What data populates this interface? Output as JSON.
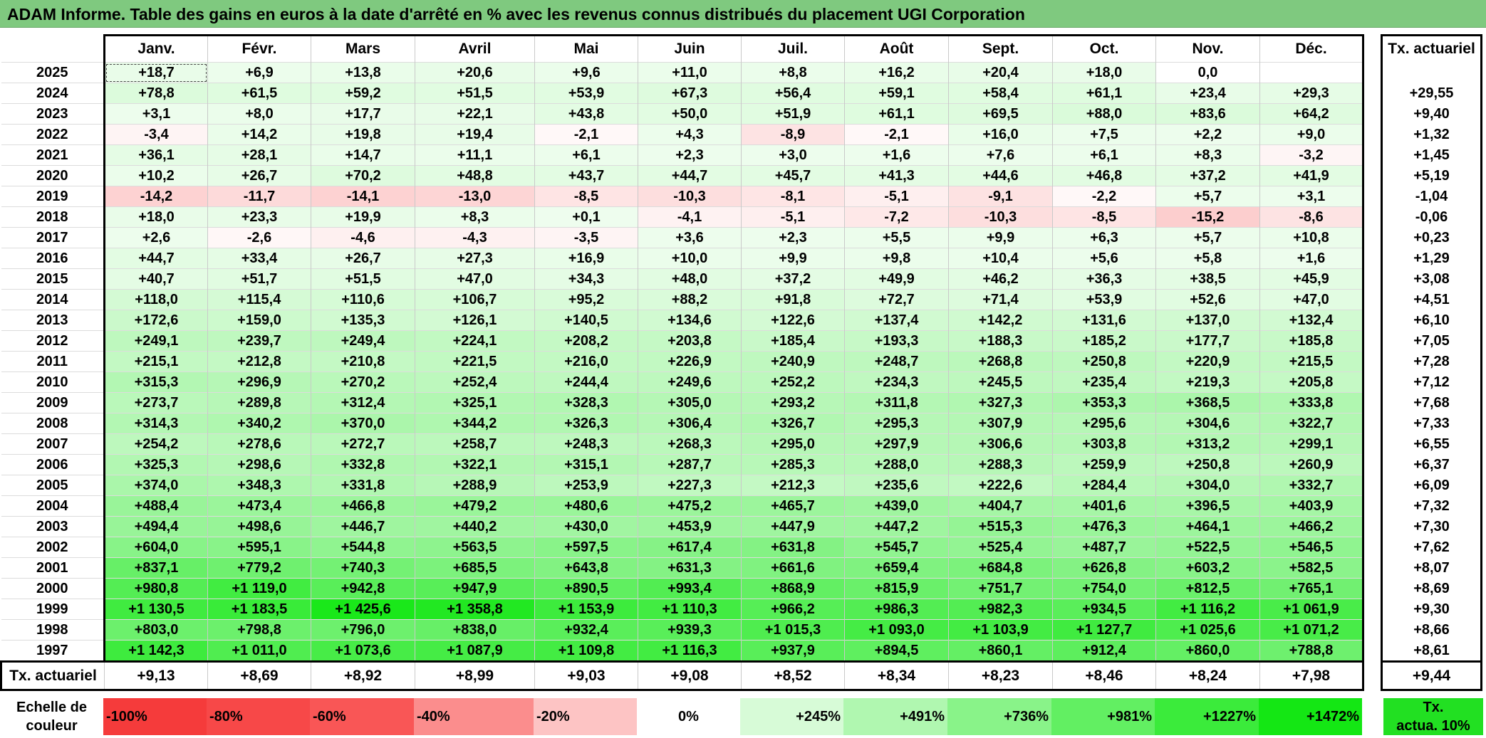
{
  "title": "ADAM Informe. Table des gains en euros à la date d'arrêté en % avec les revenus connus distribués du placement UGI Corporation",
  "months": [
    "Janv.",
    "Févr.",
    "Mars",
    "Avril",
    "Mai",
    "Juin",
    "Juil.",
    "Août",
    "Sept.",
    "Oct.",
    "Nov.",
    "Déc."
  ],
  "actuarial_header": "Tx. actuariel",
  "rows": [
    {
      "year": "2025",
      "values": [
        "+18,7",
        "+6,9",
        "+13,8",
        "+20,6",
        "+9,6",
        "+11,0",
        "+8,8",
        "+16,2",
        "+20,4",
        "+18,0",
        "0,0",
        ""
      ],
      "actuarial": ""
    },
    {
      "year": "2024",
      "values": [
        "+78,8",
        "+61,5",
        "+59,2",
        "+51,5",
        "+53,9",
        "+67,3",
        "+56,4",
        "+59,1",
        "+58,4",
        "+61,1",
        "+23,4",
        "+29,3"
      ],
      "actuarial": "+29,55"
    },
    {
      "year": "2023",
      "values": [
        "+3,1",
        "+8,0",
        "+17,7",
        "+22,1",
        "+43,8",
        "+50,0",
        "+51,9",
        "+61,1",
        "+69,5",
        "+88,0",
        "+83,6",
        "+64,2"
      ],
      "actuarial": "+9,40"
    },
    {
      "year": "2022",
      "values": [
        "-3,4",
        "+14,2",
        "+19,8",
        "+19,4",
        "-2,1",
        "+4,3",
        "-8,9",
        "-2,1",
        "+16,0",
        "+7,5",
        "+2,2",
        "+9,0"
      ],
      "actuarial": "+1,32"
    },
    {
      "year": "2021",
      "values": [
        "+36,1",
        "+28,1",
        "+14,7",
        "+11,1",
        "+6,1",
        "+2,3",
        "+3,0",
        "+1,6",
        "+7,6",
        "+6,1",
        "+8,3",
        "-3,2"
      ],
      "actuarial": "+1,45"
    },
    {
      "year": "2020",
      "values": [
        "+10,2",
        "+26,7",
        "+70,2",
        "+48,8",
        "+43,7",
        "+44,7",
        "+45,7",
        "+41,3",
        "+44,6",
        "+46,8",
        "+37,2",
        "+41,9"
      ],
      "actuarial": "+5,19"
    },
    {
      "year": "2019",
      "values": [
        "-14,2",
        "-11,7",
        "-14,1",
        "-13,0",
        "-8,5",
        "-10,3",
        "-8,1",
        "-5,1",
        "-9,1",
        "-2,2",
        "+5,7",
        "+3,1"
      ],
      "actuarial": "-1,04"
    },
    {
      "year": "2018",
      "values": [
        "+18,0",
        "+23,3",
        "+19,9",
        "+8,3",
        "+0,1",
        "-4,1",
        "-5,1",
        "-7,2",
        "-10,3",
        "-8,5",
        "-15,2",
        "-8,6"
      ],
      "actuarial": "-0,06"
    },
    {
      "year": "2017",
      "values": [
        "+2,6",
        "-2,6",
        "-4,6",
        "-4,3",
        "-3,5",
        "+3,6",
        "+2,3",
        "+5,5",
        "+9,9",
        "+6,3",
        "+5,7",
        "+10,8"
      ],
      "actuarial": "+0,23"
    },
    {
      "year": "2016",
      "values": [
        "+44,7",
        "+33,4",
        "+26,7",
        "+27,3",
        "+16,9",
        "+10,0",
        "+9,9",
        "+9,8",
        "+10,4",
        "+5,6",
        "+5,8",
        "+1,6"
      ],
      "actuarial": "+1,29"
    },
    {
      "year": "2015",
      "values": [
        "+40,7",
        "+51,7",
        "+51,5",
        "+47,0",
        "+34,3",
        "+48,0",
        "+37,2",
        "+49,9",
        "+46,2",
        "+36,3",
        "+38,5",
        "+45,9"
      ],
      "actuarial": "+3,08"
    },
    {
      "year": "2014",
      "values": [
        "+118,0",
        "+115,4",
        "+110,6",
        "+106,7",
        "+95,2",
        "+88,2",
        "+91,8",
        "+72,7",
        "+71,4",
        "+53,9",
        "+52,6",
        "+47,0"
      ],
      "actuarial": "+4,51"
    },
    {
      "year": "2013",
      "values": [
        "+172,6",
        "+159,0",
        "+135,3",
        "+126,1",
        "+140,5",
        "+134,6",
        "+122,6",
        "+137,4",
        "+142,2",
        "+131,6",
        "+137,0",
        "+132,4"
      ],
      "actuarial": "+6,10"
    },
    {
      "year": "2012",
      "values": [
        "+249,1",
        "+239,7",
        "+249,4",
        "+224,1",
        "+208,2",
        "+203,8",
        "+185,4",
        "+193,3",
        "+188,3",
        "+185,2",
        "+177,7",
        "+185,8"
      ],
      "actuarial": "+7,05"
    },
    {
      "year": "2011",
      "values": [
        "+215,1",
        "+212,8",
        "+210,8",
        "+221,5",
        "+216,0",
        "+226,9",
        "+240,9",
        "+248,7",
        "+268,8",
        "+250,8",
        "+220,9",
        "+215,5"
      ],
      "actuarial": "+7,28"
    },
    {
      "year": "2010",
      "values": [
        "+315,3",
        "+296,9",
        "+270,2",
        "+252,4",
        "+244,4",
        "+249,6",
        "+252,2",
        "+234,3",
        "+245,5",
        "+235,4",
        "+219,3",
        "+205,8"
      ],
      "actuarial": "+7,12"
    },
    {
      "year": "2009",
      "values": [
        "+273,7",
        "+289,8",
        "+312,4",
        "+325,1",
        "+328,3",
        "+305,0",
        "+293,2",
        "+311,8",
        "+327,3",
        "+353,3",
        "+368,5",
        "+333,8"
      ],
      "actuarial": "+7,68"
    },
    {
      "year": "2008",
      "values": [
        "+314,3",
        "+340,2",
        "+370,0",
        "+344,2",
        "+326,3",
        "+306,4",
        "+326,7",
        "+295,3",
        "+307,9",
        "+295,6",
        "+304,6",
        "+322,7"
      ],
      "actuarial": "+7,33"
    },
    {
      "year": "2007",
      "values": [
        "+254,2",
        "+278,6",
        "+272,7",
        "+258,7",
        "+248,3",
        "+268,3",
        "+295,0",
        "+297,9",
        "+306,6",
        "+303,8",
        "+313,2",
        "+299,1"
      ],
      "actuarial": "+6,55"
    },
    {
      "year": "2006",
      "values": [
        "+325,3",
        "+298,6",
        "+332,8",
        "+322,1",
        "+315,1",
        "+287,7",
        "+285,3",
        "+288,0",
        "+288,3",
        "+259,9",
        "+250,8",
        "+260,9"
      ],
      "actuarial": "+6,37"
    },
    {
      "year": "2005",
      "values": [
        "+374,0",
        "+348,3",
        "+331,8",
        "+288,9",
        "+253,9",
        "+227,3",
        "+212,3",
        "+235,6",
        "+222,6",
        "+284,4",
        "+304,0",
        "+332,7"
      ],
      "actuarial": "+6,09"
    },
    {
      "year": "2004",
      "values": [
        "+488,4",
        "+473,4",
        "+466,8",
        "+479,2",
        "+480,6",
        "+475,2",
        "+465,7",
        "+439,0",
        "+404,7",
        "+401,6",
        "+396,5",
        "+403,9"
      ],
      "actuarial": "+7,32"
    },
    {
      "year": "2003",
      "values": [
        "+494,4",
        "+498,6",
        "+446,7",
        "+440,2",
        "+430,0",
        "+453,9",
        "+447,9",
        "+447,2",
        "+515,3",
        "+476,3",
        "+464,1",
        "+466,2"
      ],
      "actuarial": "+7,30"
    },
    {
      "year": "2002",
      "values": [
        "+604,0",
        "+595,1",
        "+544,8",
        "+563,5",
        "+597,5",
        "+617,4",
        "+631,8",
        "+545,7",
        "+525,4",
        "+487,7",
        "+522,5",
        "+546,5"
      ],
      "actuarial": "+7,62"
    },
    {
      "year": "2001",
      "values": [
        "+837,1",
        "+779,2",
        "+740,3",
        "+685,5",
        "+643,8",
        "+631,3",
        "+661,6",
        "+659,4",
        "+684,8",
        "+626,8",
        "+603,2",
        "+582,5"
      ],
      "actuarial": "+8,07"
    },
    {
      "year": "2000",
      "values": [
        "+980,8",
        "+1 119,0",
        "+942,8",
        "+947,9",
        "+890,5",
        "+993,4",
        "+868,9",
        "+815,9",
        "+751,7",
        "+754,0",
        "+812,5",
        "+765,1"
      ],
      "actuarial": "+8,69"
    },
    {
      "year": "1999",
      "values": [
        "+1 130,5",
        "+1 183,5",
        "+1 425,6",
        "+1 358,8",
        "+1 153,9",
        "+1 110,3",
        "+966,2",
        "+986,3",
        "+982,3",
        "+934,5",
        "+1 116,2",
        "+1 061,9"
      ],
      "actuarial": "+9,30"
    },
    {
      "year": "1998",
      "values": [
        "+803,0",
        "+798,8",
        "+796,0",
        "+838,0",
        "+932,4",
        "+939,3",
        "+1 015,3",
        "+1 093,0",
        "+1 103,9",
        "+1 127,7",
        "+1 025,6",
        "+1 071,2"
      ],
      "actuarial": "+8,66"
    },
    {
      "year": "1997",
      "values": [
        "+1 142,3",
        "+1 011,0",
        "+1 073,6",
        "+1 087,9",
        "+1 109,8",
        "+1 116,3",
        "+937,9",
        "+894,5",
        "+860,1",
        "+912,4",
        "+860,0",
        "+788,8"
      ],
      "actuarial": "+8,61"
    }
  ],
  "footer": {
    "label": "Tx. actuariel",
    "values": [
      "+9,13",
      "+8,69",
      "+8,92",
      "+8,99",
      "+9,03",
      "+9,08",
      "+8,52",
      "+8,34",
      "+8,23",
      "+8,46",
      "+8,24",
      "+7,98"
    ],
    "actuarial": "+9,44"
  },
  "scale": {
    "label_line1": "Echelle de",
    "label_line2": "couleur",
    "steps": [
      {
        "label": "-100%",
        "color": "#f53b3b"
      },
      {
        "label": "-80%",
        "color": "#f74848"
      },
      {
        "label": "-60%",
        "color": "#f95656"
      },
      {
        "label": "-40%",
        "color": "#fb8d8d"
      },
      {
        "label": "-20%",
        "color": "#fdc4c4"
      },
      {
        "label": "0%",
        "color": "#ffffff"
      },
      {
        "label": "+245%",
        "color": "#d7fbd7"
      },
      {
        "label": "+491%",
        "color": "#b0f7b0"
      },
      {
        "label": "+736%",
        "color": "#89f389"
      },
      {
        "label": "+981%",
        "color": "#62ef62"
      },
      {
        "label": "+1227%",
        "color": "#3beb3b"
      },
      {
        "label": "+1472%",
        "color": "#14e714"
      }
    ],
    "act_line1": "Tx.",
    "act_line2": "actua. 10%",
    "act_color": "#22e022"
  }
}
